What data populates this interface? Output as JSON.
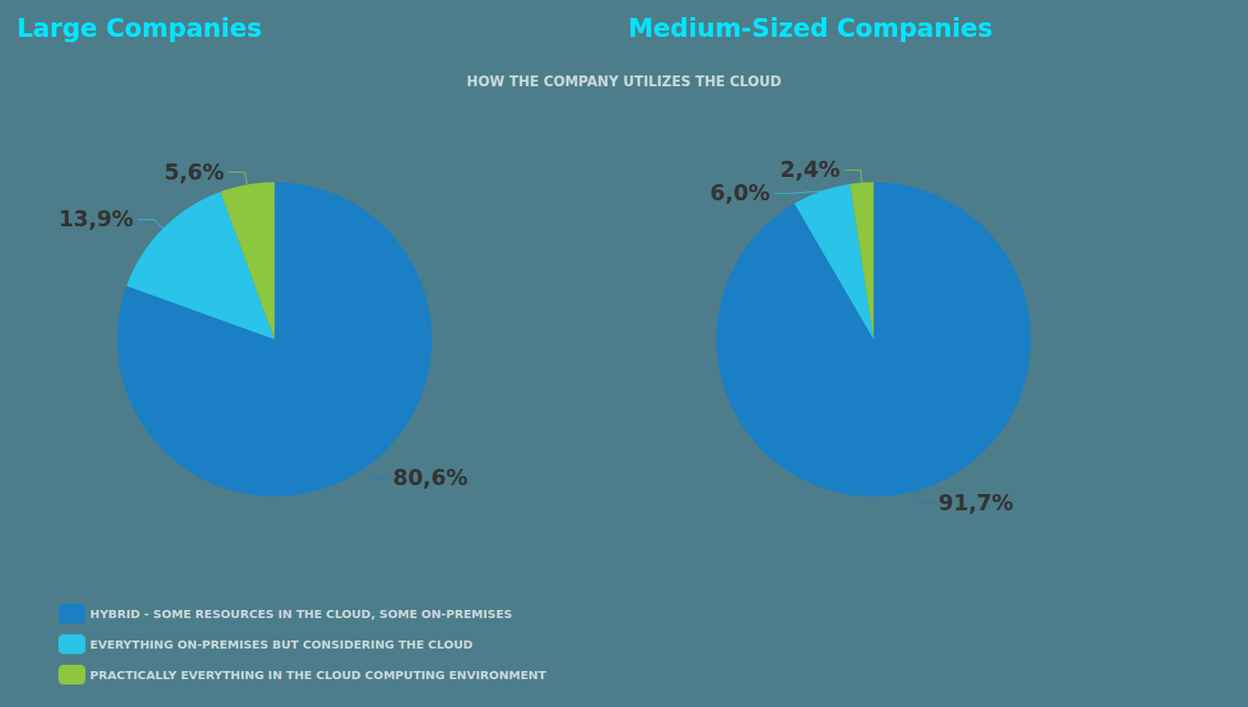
{
  "chart_data": [
    {
      "type": "pie",
      "title": "Large Companies",
      "subtitle": "HOW THE COMPANY UTILIZES THE CLOUD",
      "categories": [
        "HYBRID - SOME RESOURCES IN THE CLOUD, SOME ON-PREMISES",
        "EVERYTHING ON-PREMISES BUT CONSIDERING THE CLOUD",
        "PRACTICALLY EVERYTHING IN THE CLOUD COMPUTING ENVIRONMENT"
      ],
      "values": [
        80.6,
        13.9,
        5.6
      ],
      "value_labels": [
        "80,6%",
        "13,9%",
        "5,6%"
      ],
      "colors": [
        "#1a7fc4",
        "#29c4e8",
        "#8dc63f"
      ],
      "data_labels": true,
      "legend": "bottom"
    },
    {
      "type": "pie",
      "title": "Medium-Sized Companies",
      "categories": [
        "HYBRID - SOME RESOURCES IN THE CLOUD, SOME ON-PREMISES",
        "EVERYTHING ON-PREMISES BUT CONSIDERING THE CLOUD",
        "PRACTICALLY EVERYTHING IN THE CLOUD COMPUTING ENVIRONMENT"
      ],
      "values": [
        91.7,
        6.0,
        2.4
      ],
      "value_labels": [
        "91,7%",
        "6,0%",
        "2,4%"
      ],
      "colors": [
        "#1a7fc4",
        "#29c4e8",
        "#8dc63f"
      ],
      "data_labels": true
    }
  ]
}
